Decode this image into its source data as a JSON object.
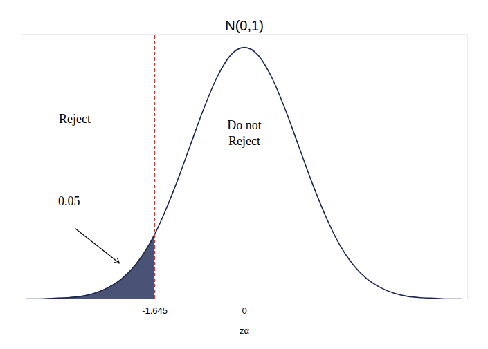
{
  "chart_data": {
    "type": "area",
    "title": "N(0,1)",
    "x_label": "zα",
    "x": [
      -4,
      -3.75,
      -3.5,
      -3.25,
      -3,
      -2.75,
      -2.5,
      -2.25,
      -2,
      -1.75,
      -1.645,
      -1.5,
      -1.25,
      -1,
      -0.75,
      -0.5,
      -0.25,
      0,
      0.25,
      0.5,
      0.75,
      1,
      1.25,
      1.5,
      1.75,
      2,
      2.25,
      2.5,
      2.75,
      3,
      3.25,
      3.5,
      3.75,
      4
    ],
    "values": [
      0,
      0,
      0.001,
      0.002,
      0.004,
      0.009,
      0.018,
      0.032,
      0.054,
      0.086,
      0.103,
      0.13,
      0.183,
      0.242,
      0.301,
      0.352,
      0.387,
      0.399,
      0.387,
      0.352,
      0.301,
      0.242,
      0.183,
      0.13,
      0.086,
      0.054,
      0.032,
      0.018,
      0.009,
      0.004,
      0.002,
      0.001,
      0,
      0
    ],
    "color": "#1c2550",
    "xlim": [
      -4.1,
      4.1
    ],
    "xticks": [
      -1.645,
      0
    ],
    "ylim": [
      0,
      0.42
    ],
    "yticks": [],
    "tick_labels": "x",
    "grid": false,
    "critical_value": {
      "value": -1.645,
      "color": "#e0302a",
      "line_style": "dashed"
    },
    "shaded_tail": {
      "probability": 0.05,
      "color": "#4a5275"
    },
    "annotations": {
      "reject": "Reject",
      "do_not_reject": [
        "Do not",
        "Reject"
      ]
    }
  }
}
